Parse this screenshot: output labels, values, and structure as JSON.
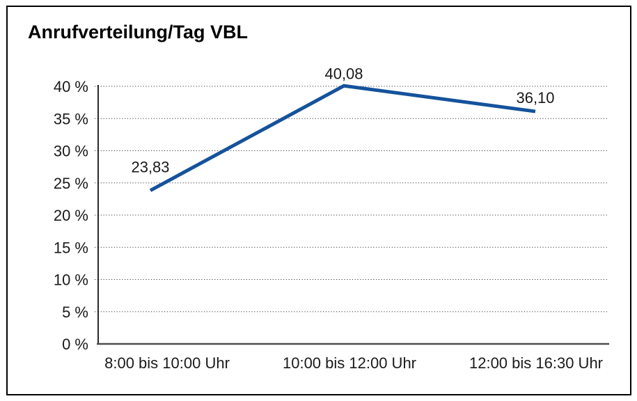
{
  "frame": {
    "background": "#ffffff",
    "border_color": "#000000"
  },
  "chart_data": {
    "type": "line",
    "title": "Anrufverteilung/Tag VBL",
    "categories": [
      "8:00 bis 10:00 Uhr",
      "10:00 bis 12:00 Uhr",
      "12:00 bis 16:30 Uhr"
    ],
    "values": [
      23.83,
      40.08,
      36.1
    ],
    "data_labels": [
      "23,83",
      "40,08",
      "36,10"
    ],
    "y_ticks": [
      0,
      5,
      10,
      15,
      20,
      25,
      30,
      35,
      40
    ],
    "y_tick_labels": [
      "0 %",
      "5 %",
      "10 %",
      "15 %",
      "20 %",
      "25 %",
      "30 %",
      "35 %",
      "40 %"
    ],
    "ylim": [
      0,
      40
    ],
    "xlabel": "",
    "ylabel": "",
    "grid": "horizontal-dotted",
    "legend": "none",
    "line_color": "#15529C",
    "text_color": "#1a1a1a"
  }
}
